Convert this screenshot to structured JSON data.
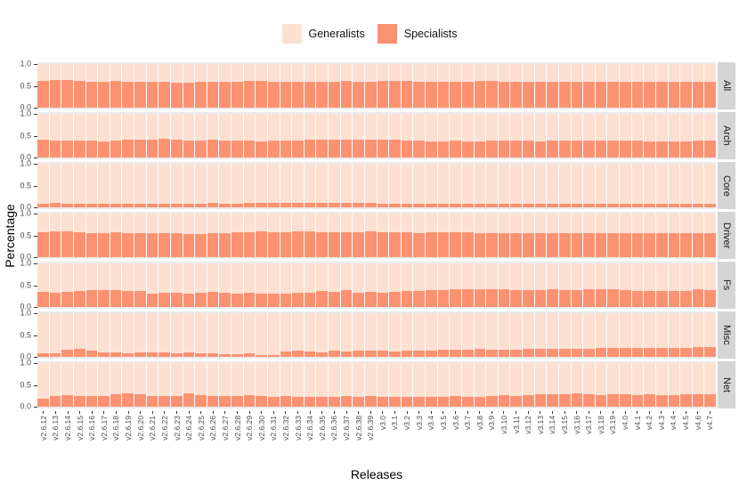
{
  "legend": {
    "items": [
      {
        "label": "Generalists",
        "color": "#FDE0D2"
      },
      {
        "label": "Specialists",
        "color": "#FC9272"
      }
    ]
  },
  "y_axis": {
    "title": "Percentage",
    "ticks": [
      {
        "label": "1.0",
        "value": 1.0
      },
      {
        "label": "0.5",
        "value": 0.5
      },
      {
        "label": "0.0",
        "value": 0.0
      }
    ]
  },
  "x_axis": {
    "title": "Releases"
  },
  "colors": {
    "generalists": "#FDE0D2",
    "specialists": "#FC9272",
    "panel_bg": "#EBEBEB",
    "strip_bg": "#D5D5D5",
    "grid": "#FFFFFF"
  },
  "chart_data": {
    "type": "bar",
    "subtype": "stacked_percentage_faceted",
    "stack_total": 1.0,
    "ylim": [
      0,
      1
    ],
    "legend_position": "top",
    "series_names": [
      "Generalists",
      "Specialists"
    ],
    "note_generalists": "generalists = stack_total - specialists for every bar",
    "categories": [
      "v2.6.12",
      "v2.6.13",
      "v2.6.14",
      "v2.6.15",
      "v2.6.16",
      "v2.6.17",
      "v2.6.18",
      "v2.6.19",
      "v2.6.20",
      "v2.6.21",
      "v2.6.22",
      "v2.6.23",
      "v2.6.24",
      "v2.6.25",
      "v2.6.26",
      "v2.6.27",
      "v2.6.28",
      "v2.6.29",
      "v2.6.30",
      "v2.6.31",
      "v2.6.32",
      "v2.6.33",
      "v2.6.34",
      "v2.6.35",
      "v2.6.36",
      "v2.6.37",
      "v2.6.38",
      "v2.6.39",
      "v3.0",
      "v3.1",
      "v3.2",
      "v3.3",
      "v3.4",
      "v3.5",
      "v3.6",
      "v3.7",
      "v3.8",
      "v3.9",
      "v3.10",
      "v3.11",
      "v3.12",
      "v3.13",
      "v3.14",
      "v3.15",
      "v3.16",
      "v3.17",
      "v3.18",
      "v3.19",
      "v4.0",
      "v4.1",
      "v4.2",
      "v4.3",
      "v4.4",
      "v4.5",
      "v4.6",
      "v4.7"
    ],
    "facets": [
      {
        "label": "All",
        "specialists": [
          0.62,
          0.63,
          0.63,
          0.61,
          0.6,
          0.6,
          0.62,
          0.6,
          0.59,
          0.59,
          0.59,
          0.58,
          0.58,
          0.59,
          0.59,
          0.6,
          0.59,
          0.62,
          0.61,
          0.6,
          0.59,
          0.6,
          0.59,
          0.6,
          0.6,
          0.61,
          0.6,
          0.6,
          0.62,
          0.62,
          0.61,
          0.6,
          0.6,
          0.6,
          0.6,
          0.6,
          0.61,
          0.61,
          0.6,
          0.6,
          0.6,
          0.59,
          0.6,
          0.6,
          0.6,
          0.6,
          0.6,
          0.6,
          0.6,
          0.59,
          0.6,
          0.59,
          0.59,
          0.59,
          0.6,
          0.6
        ]
      },
      {
        "label": "Arch",
        "specialists": [
          0.4,
          0.38,
          0.38,
          0.39,
          0.38,
          0.37,
          0.38,
          0.4,
          0.41,
          0.41,
          0.43,
          0.41,
          0.38,
          0.39,
          0.4,
          0.39,
          0.38,
          0.38,
          0.37,
          0.38,
          0.38,
          0.39,
          0.4,
          0.4,
          0.4,
          0.4,
          0.4,
          0.4,
          0.41,
          0.4,
          0.38,
          0.38,
          0.36,
          0.37,
          0.38,
          0.36,
          0.37,
          0.39,
          0.38,
          0.38,
          0.38,
          0.37,
          0.38,
          0.38,
          0.38,
          0.38,
          0.38,
          0.38,
          0.38,
          0.38,
          0.37,
          0.37,
          0.37,
          0.37,
          0.38,
          0.38
        ]
      },
      {
        "label": "Core",
        "specialists": [
          0.08,
          0.09,
          0.08,
          0.07,
          0.07,
          0.07,
          0.07,
          0.08,
          0.08,
          0.08,
          0.08,
          0.08,
          0.08,
          0.08,
          0.09,
          0.08,
          0.08,
          0.1,
          0.1,
          0.1,
          0.1,
          0.09,
          0.1,
          0.1,
          0.09,
          0.1,
          0.1,
          0.1,
          0.08,
          0.08,
          0.08,
          0.08,
          0.07,
          0.08,
          0.08,
          0.08,
          0.08,
          0.08,
          0.08,
          0.08,
          0.08,
          0.08,
          0.07,
          0.07,
          0.08,
          0.08,
          0.08,
          0.08,
          0.08,
          0.08,
          0.08,
          0.08,
          0.07,
          0.08,
          0.08,
          0.08
        ]
      },
      {
        "label": "Driver",
        "specialists": [
          0.58,
          0.59,
          0.6,
          0.57,
          0.55,
          0.56,
          0.57,
          0.56,
          0.56,
          0.56,
          0.55,
          0.55,
          0.54,
          0.53,
          0.55,
          0.56,
          0.57,
          0.57,
          0.59,
          0.57,
          0.58,
          0.6,
          0.59,
          0.58,
          0.57,
          0.58,
          0.58,
          0.59,
          0.58,
          0.57,
          0.57,
          0.56,
          0.57,
          0.57,
          0.57,
          0.57,
          0.56,
          0.56,
          0.56,
          0.55,
          0.56,
          0.56,
          0.55,
          0.56,
          0.56,
          0.56,
          0.56,
          0.55,
          0.55,
          0.55,
          0.56,
          0.55,
          0.55,
          0.55,
          0.56,
          0.55
        ]
      },
      {
        "label": "Fs",
        "specialists": [
          0.34,
          0.33,
          0.35,
          0.36,
          0.38,
          0.38,
          0.38,
          0.37,
          0.36,
          0.31,
          0.33,
          0.32,
          0.31,
          0.33,
          0.35,
          0.33,
          0.3,
          0.32,
          0.3,
          0.3,
          0.31,
          0.32,
          0.33,
          0.36,
          0.35,
          0.38,
          0.33,
          0.34,
          0.32,
          0.35,
          0.36,
          0.37,
          0.38,
          0.39,
          0.4,
          0.41,
          0.41,
          0.4,
          0.4,
          0.38,
          0.39,
          0.39,
          0.4,
          0.38,
          0.39,
          0.4,
          0.4,
          0.41,
          0.38,
          0.36,
          0.37,
          0.36,
          0.36,
          0.37,
          0.4,
          0.39
        ]
      },
      {
        "label": "Misc",
        "specialists": [
          0.08,
          0.08,
          0.16,
          0.18,
          0.13,
          0.1,
          0.09,
          0.08,
          0.09,
          0.1,
          0.1,
          0.08,
          0.1,
          0.08,
          0.07,
          0.06,
          0.06,
          0.08,
          0.04,
          0.03,
          0.12,
          0.13,
          0.11,
          0.1,
          0.14,
          0.12,
          0.13,
          0.14,
          0.13,
          0.12,
          0.13,
          0.14,
          0.13,
          0.15,
          0.15,
          0.16,
          0.17,
          0.16,
          0.16,
          0.15,
          0.17,
          0.18,
          0.18,
          0.18,
          0.17,
          0.18,
          0.19,
          0.2,
          0.19,
          0.2,
          0.21,
          0.2,
          0.2,
          0.21,
          0.22,
          0.22
        ]
      },
      {
        "label": "Net",
        "specialists": [
          0.18,
          0.24,
          0.26,
          0.25,
          0.24,
          0.24,
          0.28,
          0.3,
          0.28,
          0.25,
          0.24,
          0.25,
          0.3,
          0.26,
          0.24,
          0.25,
          0.24,
          0.26,
          0.25,
          0.22,
          0.24,
          0.22,
          0.23,
          0.22,
          0.23,
          0.24,
          0.23,
          0.24,
          0.23,
          0.22,
          0.22,
          0.23,
          0.22,
          0.23,
          0.24,
          0.23,
          0.23,
          0.24,
          0.26,
          0.25,
          0.27,
          0.28,
          0.28,
          0.28,
          0.3,
          0.28,
          0.27,
          0.28,
          0.28,
          0.27,
          0.28,
          0.27,
          0.27,
          0.28,
          0.28,
          0.28
        ]
      }
    ]
  }
}
